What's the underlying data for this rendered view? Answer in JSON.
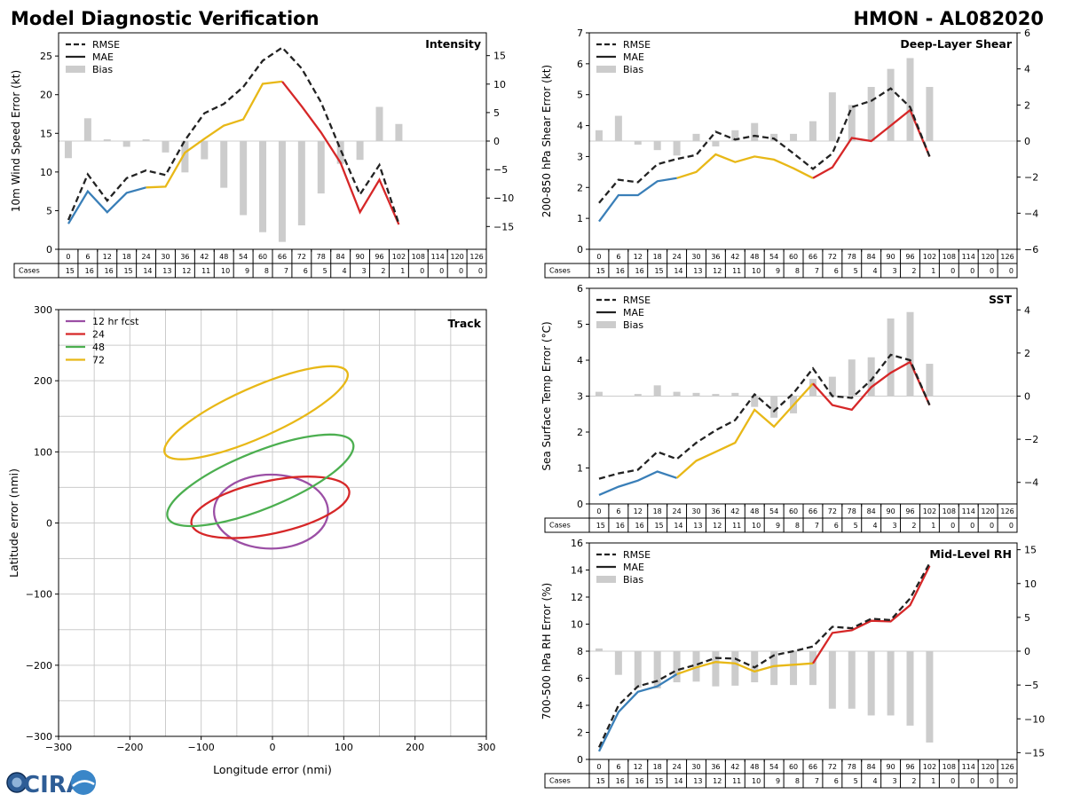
{
  "header": {
    "title": "Model Diagnostic Verification",
    "storm": "HMON - AL082020"
  },
  "logo_text": "CIRA",
  "cases_label": "Cases",
  "hours": [
    0,
    6,
    12,
    18,
    24,
    30,
    36,
    42,
    48,
    54,
    60,
    66,
    72,
    78,
    84,
    90,
    96,
    102,
    108,
    114,
    120,
    126
  ],
  "cases": [
    15,
    16,
    16,
    15,
    14,
    13,
    12,
    11,
    10,
    9,
    8,
    7,
    6,
    5,
    4,
    3,
    2,
    1,
    0,
    0,
    0,
    0
  ],
  "colors": {
    "rmse": "#222222",
    "bias": "#cccccc",
    "mae_segments": [
      "#3a7fb8",
      "#e8b817",
      "#d62728"
    ]
  },
  "legend_labels": {
    "rmse": "RMSE",
    "mae": "MAE",
    "bias": "Bias"
  },
  "chart_data": [
    {
      "type": "line",
      "title": "Intensity",
      "ylabel": "10m Wind Speed Error (kt)",
      "ylim": [
        0,
        28
      ],
      "yticks": [
        0,
        5,
        10,
        15,
        20,
        25
      ],
      "y2lim": [
        -19,
        19
      ],
      "y2ticks": [
        -15,
        -10,
        -5,
        0,
        5,
        10,
        15
      ],
      "x": [
        0,
        6,
        12,
        18,
        24,
        30,
        36,
        42,
        48,
        54,
        60,
        66,
        72,
        78,
        84,
        90,
        96,
        102
      ],
      "rmse": [
        3.8,
        9.7,
        6.3,
        9.2,
        10.2,
        9.6,
        14.1,
        17.6,
        18.8,
        21.0,
        24.4,
        26.1,
        23.4,
        19.0,
        12.9,
        7.1,
        10.9,
        3.3
      ],
      "mae": [
        3.3,
        7.5,
        4.8,
        7.3,
        8.0,
        8.1,
        12.5,
        14.3,
        16.0,
        16.8,
        21.4,
        21.7,
        18.5,
        15.1,
        11.2,
        4.8,
        9.0,
        3.2
      ],
      "bias_x": [
        0,
        6,
        12,
        18,
        24,
        30,
        36,
        42,
        48,
        54,
        60,
        66,
        72,
        78,
        84,
        90,
        96,
        102
      ],
      "bias": [
        -3.0,
        4.0,
        0.3,
        -1.0,
        0.3,
        -2.0,
        -5.5,
        -3.2,
        -8.2,
        -13.0,
        -16.0,
        -17.7,
        -14.8,
        -9.2,
        -4.0,
        -3.3,
        6.0,
        3.0
      ]
    },
    {
      "type": "line",
      "title": "Deep-Layer Shear",
      "ylabel": "200-850 hPa Shear Error (kt)",
      "ylim": [
        0,
        7
      ],
      "yticks": [
        0,
        1,
        2,
        3,
        4,
        5,
        6,
        7
      ],
      "y2lim": [
        -6,
        6
      ],
      "y2ticks": [
        -6,
        -4,
        -2,
        0,
        2,
        4,
        6
      ],
      "x": [
        0,
        6,
        12,
        18,
        24,
        30,
        36,
        42,
        48,
        54,
        60,
        66,
        72,
        78,
        84,
        90,
        96,
        102
      ],
      "rmse": [
        1.5,
        2.25,
        2.17,
        2.75,
        2.92,
        3.05,
        3.8,
        3.55,
        3.67,
        3.58,
        3.1,
        2.6,
        3.1,
        4.6,
        4.8,
        5.2,
        4.6,
        3.0
      ],
      "mae": [
        0.9,
        1.75,
        1.75,
        2.2,
        2.3,
        2.5,
        3.07,
        2.82,
        3.0,
        2.9,
        2.62,
        2.3,
        2.65,
        3.6,
        3.5,
        4.0,
        4.5,
        3.0
      ],
      "bias_x": [
        0,
        6,
        12,
        18,
        24,
        30,
        36,
        42,
        48,
        54,
        60,
        66,
        72,
        78,
        84,
        90,
        96,
        102
      ],
      "bias": [
        0.6,
        1.4,
        -0.2,
        -0.5,
        -0.8,
        0.4,
        -0.3,
        0.6,
        1.0,
        0.4,
        0.4,
        1.1,
        2.7,
        2.0,
        3.0,
        4.0,
        4.6,
        3.0
      ]
    },
    {
      "type": "line",
      "title": "SST",
      "ylabel": "Sea Surface Temp Error (°C)",
      "ylim": [
        0,
        6
      ],
      "yticks": [
        0,
        1,
        2,
        3,
        4,
        5,
        6
      ],
      "y2lim": [
        -5,
        5
      ],
      "y2ticks": [
        -4,
        -2,
        0,
        2,
        4
      ],
      "x": [
        0,
        6,
        12,
        18,
        24,
        30,
        36,
        42,
        48,
        54,
        60,
        66,
        72,
        78,
        84,
        90,
        96,
        102
      ],
      "rmse": [
        0.7,
        0.85,
        0.95,
        1.45,
        1.25,
        1.7,
        2.05,
        2.33,
        3.05,
        2.58,
        3.08,
        3.77,
        3.0,
        2.95,
        3.45,
        4.15,
        4.0,
        2.75
      ],
      "mae": [
        0.25,
        0.48,
        0.65,
        0.9,
        0.72,
        1.2,
        1.45,
        1.7,
        2.62,
        2.15,
        2.75,
        3.35,
        2.75,
        2.62,
        3.25,
        3.65,
        3.95,
        2.75
      ],
      "bias_x": [
        0,
        6,
        12,
        18,
        24,
        30,
        36,
        42,
        48,
        54,
        60,
        66,
        72,
        78,
        84,
        90,
        96,
        102
      ],
      "bias": [
        0.2,
        0.0,
        0.1,
        0.5,
        0.2,
        0.15,
        0.1,
        0.15,
        -0.5,
        -1.0,
        -0.8,
        0.8,
        0.9,
        1.7,
        1.8,
        3.6,
        3.9,
        1.5
      ]
    },
    {
      "type": "line",
      "title": "Mid-Level RH",
      "ylabel": "700-500 hPa RH Error (%)",
      "ylim": [
        0,
        16
      ],
      "yticks": [
        0,
        2,
        4,
        6,
        8,
        10,
        12,
        14,
        16
      ],
      "y2lim": [
        -16,
        16
      ],
      "y2ticks": [
        -15,
        -10,
        -5,
        0,
        5,
        10,
        15
      ],
      "x": [
        0,
        6,
        12,
        18,
        24,
        30,
        36,
        42,
        48,
        54,
        60,
        66,
        72,
        78,
        84,
        90,
        96,
        102
      ],
      "rmse": [
        0.9,
        4.0,
        5.4,
        5.8,
        6.6,
        7.0,
        7.5,
        7.45,
        6.8,
        7.7,
        8.0,
        8.35,
        9.8,
        9.7,
        10.4,
        10.3,
        11.9,
        14.5
      ],
      "mae": [
        0.6,
        3.5,
        5.0,
        5.4,
        6.3,
        6.8,
        7.2,
        7.1,
        6.5,
        6.9,
        7.0,
        7.1,
        9.35,
        9.55,
        10.25,
        10.2,
        11.4,
        14.3
      ],
      "bias_x": [
        0,
        6,
        12,
        18,
        24,
        30,
        36,
        42,
        48,
        54,
        60,
        66,
        72,
        78,
        84,
        90,
        96,
        102
      ],
      "bias": [
        0.4,
        -3.5,
        -5.4,
        -5.5,
        -4.6,
        -4.5,
        -5.2,
        -5.1,
        -4.6,
        -5.0,
        -5.0,
        -5.0,
        -8.5,
        -8.5,
        -9.5,
        -9.5,
        -11.0,
        -13.5
      ]
    },
    {
      "type": "scatter",
      "title": "Track",
      "xlabel": "Longitude error (nmi)",
      "ylabel": "Latitude error (nmi)",
      "xlim": [
        -300,
        300
      ],
      "ylim": [
        -300,
        300
      ],
      "ticks": [
        -300,
        -200,
        -100,
        0,
        100,
        200,
        300
      ],
      "grid_step": 50,
      "ellipses": [
        {
          "label": "12 hr fcst",
          "color": "#9b4fa5",
          "cx": -2,
          "cy": 16,
          "rx": 80,
          "ry": 52,
          "angle": 0
        },
        {
          "label": "24",
          "color": "#d62728",
          "cx": -3,
          "cy": 22,
          "rx": 113,
          "ry": 37,
          "angle": 12
        },
        {
          "label": "48",
          "color": "#4caf50",
          "cx": -17,
          "cy": 60,
          "rx": 140,
          "ry": 40,
          "angle": 22
        },
        {
          "label": "72",
          "color": "#e8b817",
          "cx": -23,
          "cy": 155,
          "rx": 140,
          "ry": 35,
          "angle": 24
        }
      ]
    }
  ]
}
